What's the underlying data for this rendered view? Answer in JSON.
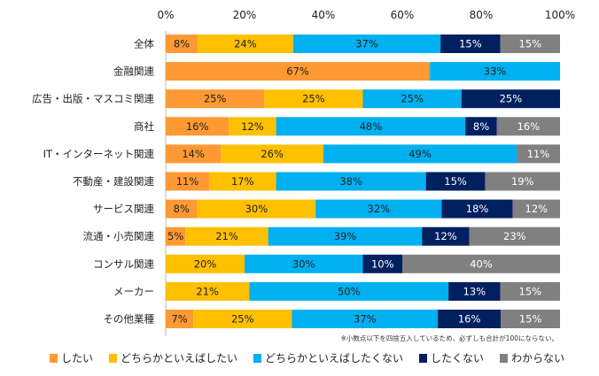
{
  "chart_data": {
    "type": "bar",
    "orientation": "horizontal",
    "stacked": true,
    "xlim": [
      0,
      100
    ],
    "x_ticks": [
      "0%",
      "20%",
      "40%",
      "60%",
      "80%",
      "100%"
    ],
    "grid": false,
    "legend_position": "bottom",
    "categories": [
      "全体",
      "金融関連",
      "広告・出版・マスコミ関連",
      "商社",
      "IT・インターネット関連",
      "不動産・建設関連",
      "サービス関連",
      "流通・小売関連",
      "コンサル関連",
      "メーカー",
      "その他業種"
    ],
    "series": [
      {
        "name": "したい",
        "color": "#FF9933",
        "values": [
          8,
          67,
          25,
          16,
          14,
          11,
          8,
          5,
          0,
          0,
          7
        ]
      },
      {
        "name": "どちらかといえばしたい",
        "color": "#FFC000",
        "values": [
          24,
          0,
          25,
          12,
          26,
          17,
          30,
          21,
          20,
          21,
          25
        ]
      },
      {
        "name": "どちらかといえばしたくない",
        "color": "#00B0F0",
        "values": [
          37,
          33,
          25,
          48,
          49,
          38,
          32,
          39,
          30,
          50,
          37
        ]
      },
      {
        "name": "したくない",
        "color": "#002060",
        "values": [
          15,
          0,
          25,
          8,
          0,
          15,
          18,
          12,
          10,
          13,
          16
        ]
      },
      {
        "name": "わからない",
        "color": "#808080",
        "values": [
          15,
          0,
          0,
          16,
          11,
          19,
          12,
          23,
          40,
          15,
          15
        ]
      }
    ],
    "annotation": "※小数点以下を四捨五入しているため、必ずしも合計が100にならない。"
  }
}
